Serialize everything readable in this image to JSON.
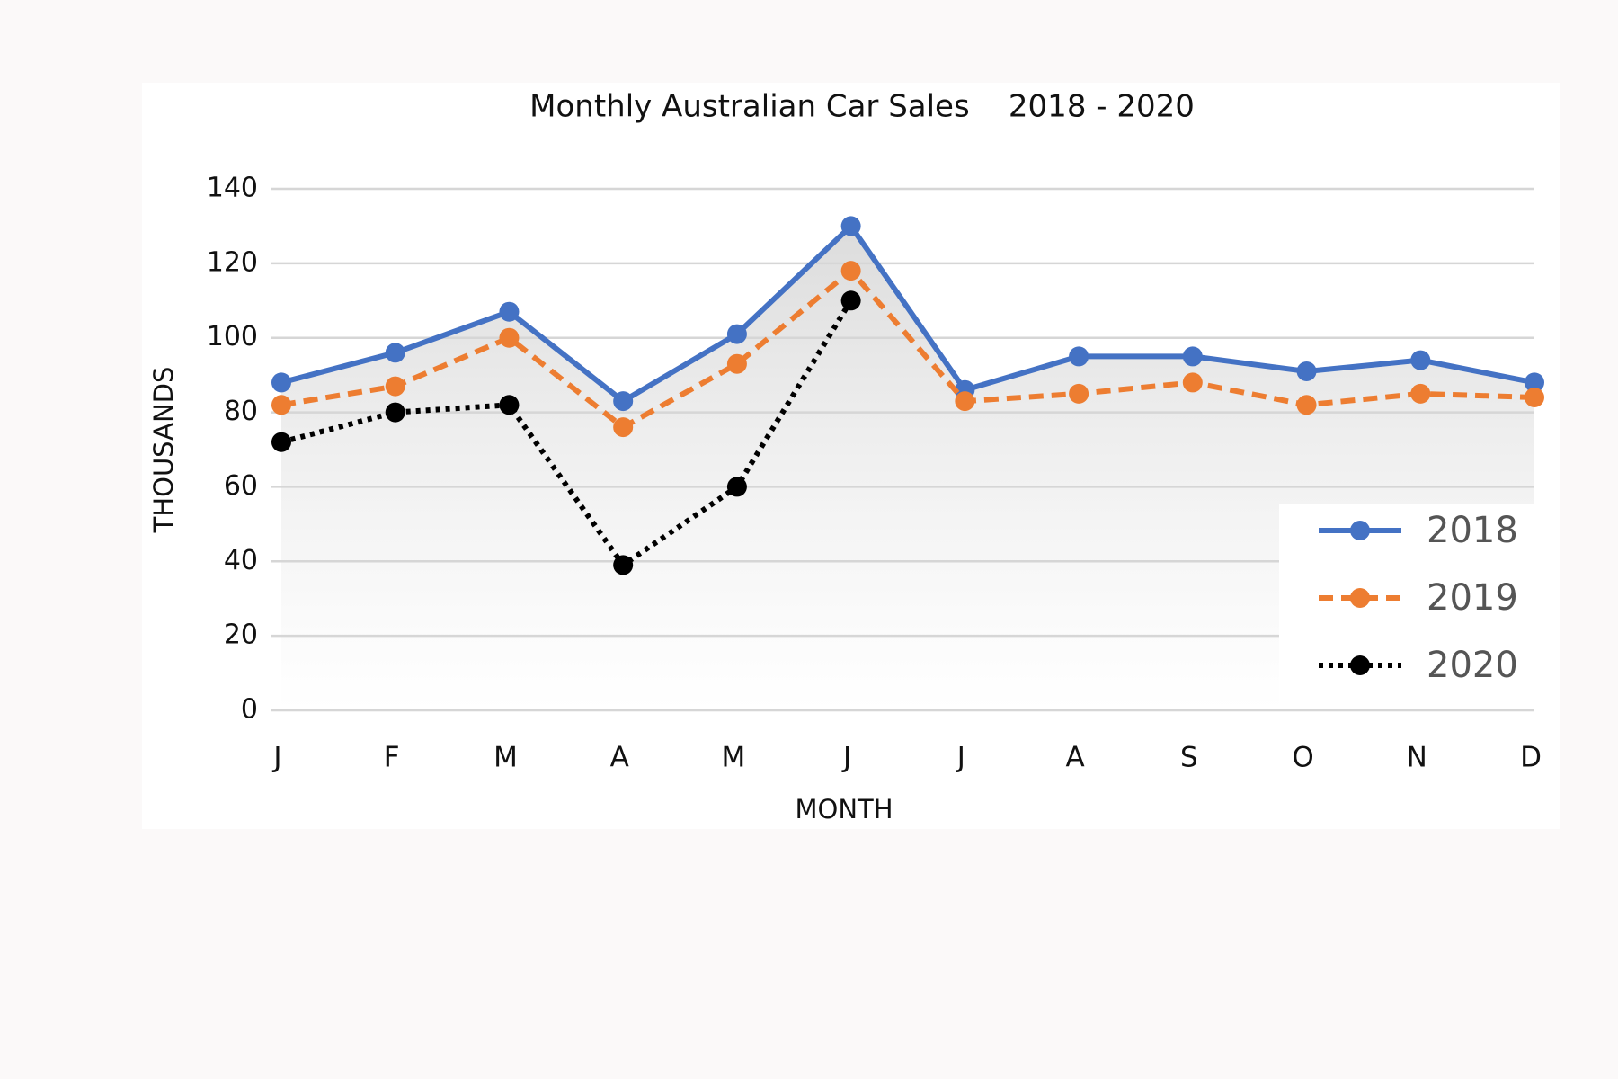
{
  "chart_data": {
    "type": "line",
    "title": "Monthly Australian Car Sales    2018 - 2020",
    "x_label": "MONTH",
    "y_label": "THOUSANDS",
    "categories": [
      "J",
      "F",
      "M",
      "A",
      "M",
      "J",
      "J",
      "A",
      "S",
      "O",
      "N",
      "D"
    ],
    "series": [
      {
        "name": "2018",
        "color": "#4472c4",
        "dash": "solid",
        "values": [
          88,
          96,
          107,
          83,
          101,
          130,
          86,
          95,
          95,
          91,
          94,
          88
        ]
      },
      {
        "name": "2019",
        "color": "#ed7d31",
        "dash": "dashed",
        "values": [
          82,
          87,
          100,
          76,
          93,
          118,
          83,
          85,
          88,
          82,
          85,
          84
        ]
      },
      {
        "name": "2020",
        "color": "#000000",
        "dash": "dotted",
        "values": [
          72,
          80,
          82,
          39,
          60,
          110,
          null,
          null,
          null,
          null,
          null,
          null
        ]
      }
    ],
    "ylim": [
      0,
      140
    ],
    "yticks": [
      0,
      20,
      40,
      60,
      80,
      100,
      120,
      140
    ],
    "grid": true,
    "legend": "lower right"
  }
}
